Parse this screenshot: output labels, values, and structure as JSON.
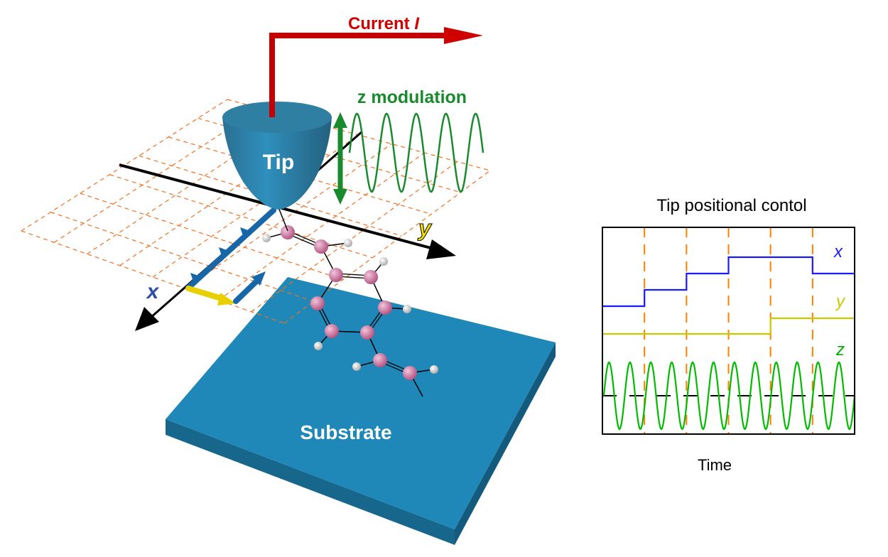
{
  "scene": {
    "current_label": "Current ",
    "current_symbol": "I",
    "z_modulation_label": "z modulation",
    "tip_label": "Tip",
    "substrate_label": "Substrate",
    "x_axis_label": "x",
    "y_axis_label": "y"
  },
  "chart": {
    "title": "Tip positional contol",
    "xlabel": "Time",
    "series_labels": {
      "x": "x",
      "y": "y",
      "z": "z"
    },
    "colors": {
      "x": "#1a1aff",
      "y": "#c8c800",
      "z": "#00bb00",
      "markers": "#ff7f00"
    }
  },
  "chart_data": {
    "type": "line",
    "title": "Tip positional contol",
    "xlabel": "Time",
    "ylabel": "",
    "intervals": 6,
    "series": [
      {
        "name": "x",
        "values": [
          0,
          1,
          2,
          3,
          3,
          2
        ]
      },
      {
        "name": "y",
        "values": [
          0,
          0,
          0,
          0,
          1,
          1
        ]
      },
      {
        "name": "z",
        "shape": "sine",
        "cycles": 12
      }
    ]
  },
  "colors": {
    "tip": "#2a7fa8",
    "substrate": "#1f88b8",
    "current": "#cc0000",
    "modulation": "#1a8a2e",
    "grid": "#f07020",
    "carbon": "#cc6f9c",
    "hydrogen": "#cfcfcf"
  }
}
